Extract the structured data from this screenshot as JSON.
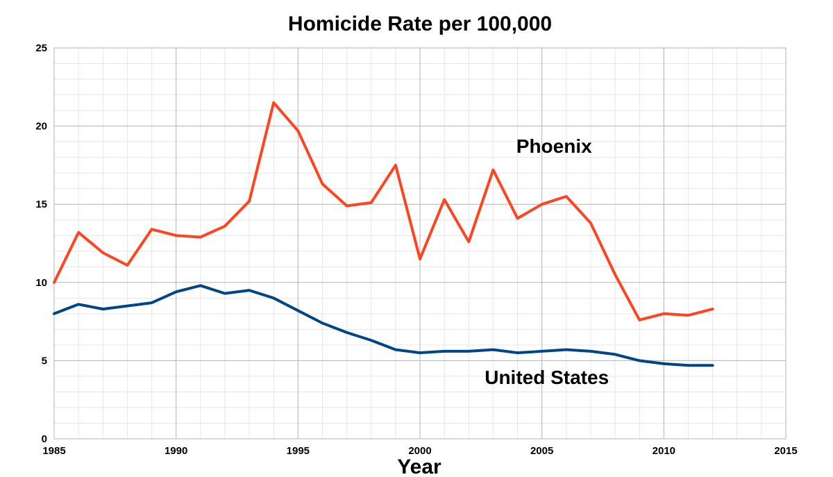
{
  "chart_data": {
    "type": "line",
    "title": "Homicide Rate per 100,000",
    "xlabel": "Year",
    "ylabel": "",
    "xlim": [
      1985,
      2015
    ],
    "ylim": [
      0,
      25
    ],
    "x_ticks": [
      1985,
      1990,
      1995,
      2000,
      2005,
      2010,
      2015
    ],
    "y_ticks": [
      0,
      5,
      10,
      15,
      20,
      25
    ],
    "grid": true,
    "legend": "none (series labeled directly on chart)",
    "x": [
      1985,
      1986,
      1987,
      1988,
      1989,
      1990,
      1991,
      1992,
      1993,
      1994,
      1995,
      1996,
      1997,
      1998,
      1999,
      2000,
      2001,
      2002,
      2003,
      2004,
      2005,
      2006,
      2007,
      2008,
      2009,
      2010,
      2011,
      2012
    ],
    "series": [
      {
        "name": "Phoenix",
        "color": "#ff4420",
        "label_at": [
          2005.5,
          18.3
        ],
        "values": [
          10.0,
          13.2,
          11.9,
          11.1,
          13.4,
          13.0,
          12.9,
          13.6,
          15.2,
          21.5,
          19.7,
          16.3,
          14.9,
          15.1,
          17.5,
          11.5,
          15.3,
          12.6,
          17.2,
          14.1,
          15.0,
          15.5,
          13.8,
          10.5,
          7.6,
          8.0,
          7.9,
          8.3
        ]
      },
      {
        "name": "United States",
        "color": "#004586",
        "label_at": [
          2005.2,
          3.5
        ],
        "values": [
          8.0,
          8.6,
          8.3,
          8.5,
          8.7,
          9.4,
          9.8,
          9.3,
          9.5,
          9.0,
          8.2,
          7.4,
          6.8,
          6.3,
          5.7,
          5.5,
          5.6,
          5.6,
          5.7,
          5.5,
          5.6,
          5.7,
          5.6,
          5.4,
          5.0,
          4.8,
          4.7,
          4.7
        ]
      }
    ]
  }
}
